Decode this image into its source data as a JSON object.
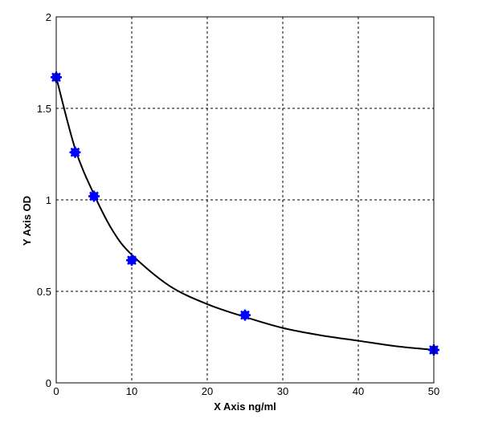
{
  "chart_data": {
    "type": "scatter",
    "title": "",
    "xlabel": "X  Axis ng/ml",
    "ylabel": "Y  Axis OD",
    "xlim": [
      0,
      50
    ],
    "ylim": [
      0,
      2
    ],
    "x_ticks": [
      0,
      10,
      20,
      30,
      40,
      50
    ],
    "y_ticks": [
      0,
      0.5,
      1,
      1.5,
      2
    ],
    "x_tick_labels": [
      "0",
      "10",
      "20",
      "30",
      "40",
      "50"
    ],
    "y_tick_labels": [
      "0",
      "0.5",
      "1",
      "1.5",
      "2"
    ],
    "grid": true,
    "legend": "none",
    "series": [
      {
        "type": "scatter",
        "x": [
          0,
          2.5,
          5,
          10,
          25,
          50
        ],
        "y": [
          1.67,
          1.26,
          1.02,
          0.67,
          0.37,
          0.18
        ],
        "color": "#0000ff"
      },
      {
        "type": "line",
        "x": [
          0,
          2.5,
          5,
          7.5,
          10,
          15,
          20,
          25,
          30,
          35,
          40,
          45,
          50
        ],
        "y": [
          1.67,
          1.28,
          1.03,
          0.83,
          0.7,
          0.53,
          0.43,
          0.36,
          0.3,
          0.26,
          0.23,
          0.2,
          0.18
        ],
        "color": "#000000"
      }
    ]
  }
}
